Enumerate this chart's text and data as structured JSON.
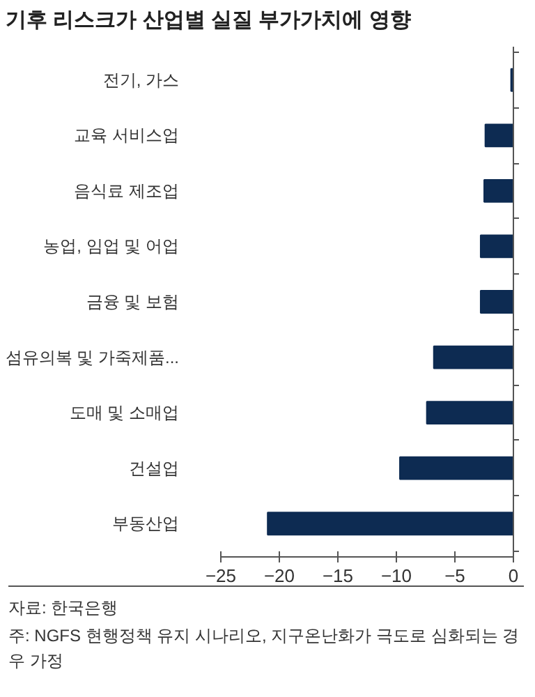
{
  "chart_data": {
    "type": "bar",
    "orientation": "horizontal",
    "title": "기후 리스크가 산업별 실질 부가가치에 영향",
    "categories": [
      "전기, 가스",
      "교육 서비스업",
      "음식료 제조업",
      "농업, 임업 및 어업",
      "금융 및 보험",
      "섬유의복 및 가죽제품...",
      "도매 및 소매업",
      "건설업",
      "부동산업"
    ],
    "values": [
      -0.2,
      -2.4,
      -2.5,
      -2.8,
      -2.8,
      -6.8,
      -7.4,
      -9.7,
      -21.0
    ],
    "color": "#0d2b52",
    "xlim": [
      -25,
      0
    ],
    "xticks": [
      -25,
      -20,
      -15,
      -10,
      -5,
      0
    ],
    "grid": false,
    "annotations": [
      "자료: 한국은행",
      "주: NGFS 현행정책 유지 시나리오, 지구온난화가 극도로 심화되는 경우 가정"
    ]
  }
}
